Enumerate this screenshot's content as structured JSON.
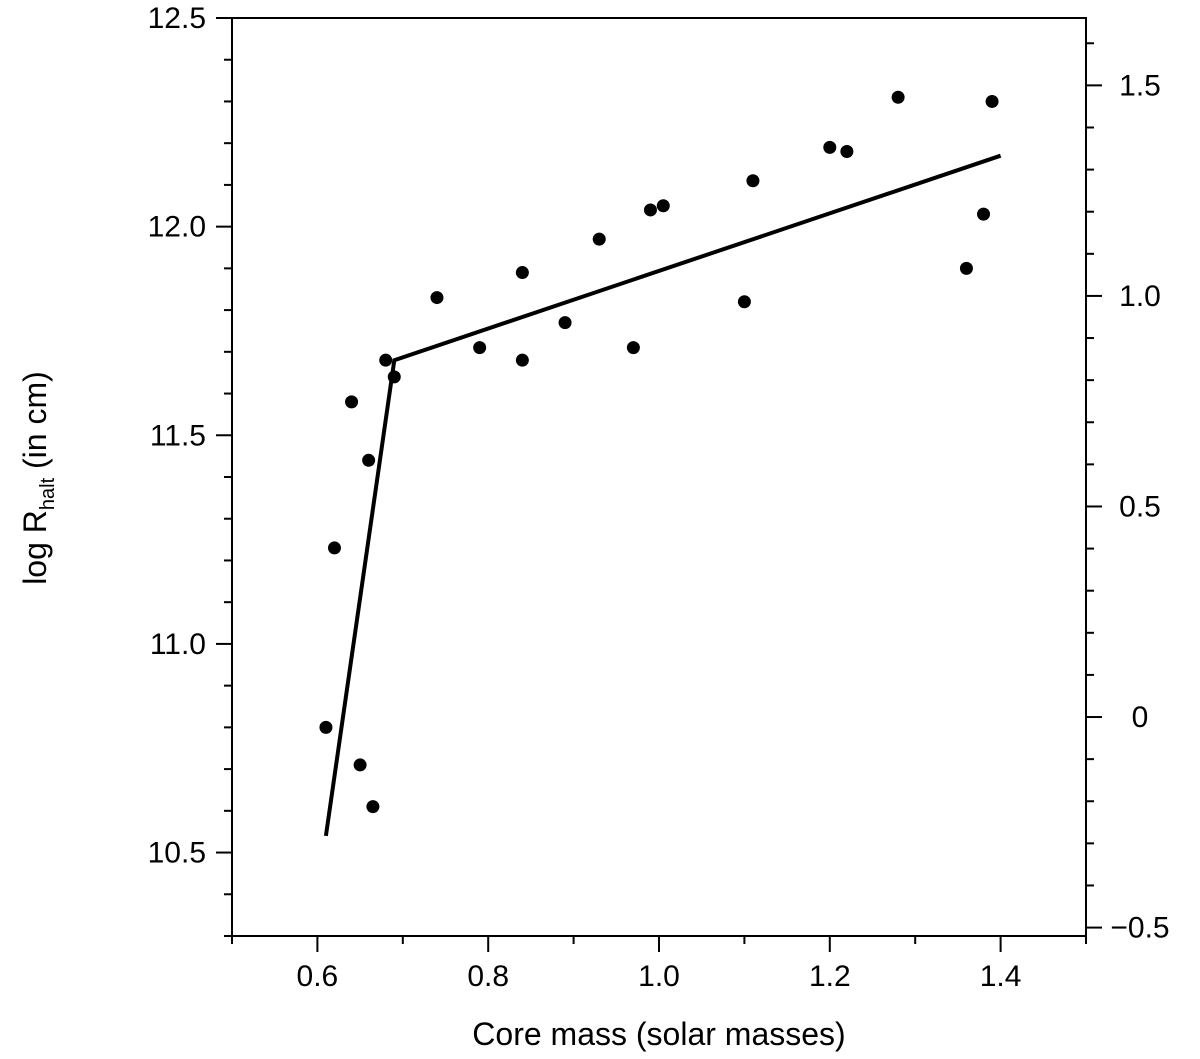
{
  "chart_data": {
    "type": "scatter",
    "xlabel": "Core mass (solar masses)",
    "ylabel": {
      "prefix": "log R",
      "subscript": "halt",
      "suffix": " (in cm)"
    },
    "xlim": [
      0.5,
      1.5
    ],
    "ylim": [
      10.3,
      12.5
    ],
    "y2lim": [
      -0.52,
      1.66
    ],
    "x_ticks": [
      {
        "value": 0.6,
        "label": "0.6"
      },
      {
        "value": 0.8,
        "label": "0.8"
      },
      {
        "value": 1.0,
        "label": "1.0"
      },
      {
        "value": 1.2,
        "label": "1.2"
      },
      {
        "value": 1.4,
        "label": "1.4"
      }
    ],
    "y_ticks": [
      {
        "value": 10.5,
        "label": "10.5"
      },
      {
        "value": 11.0,
        "label": "11.0"
      },
      {
        "value": 11.5,
        "label": "11.5"
      },
      {
        "value": 12.0,
        "label": "12.0"
      },
      {
        "value": 12.5,
        "label": "12.5"
      }
    ],
    "y2_ticks": [
      {
        "value": -0.5,
        "label": "−0.5"
      },
      {
        "value": 0.0,
        "label": "0"
      },
      {
        "value": 0.5,
        "label": "0.5"
      },
      {
        "value": 1.0,
        "label": "1.0"
      },
      {
        "value": 1.5,
        "label": "1.5"
      }
    ],
    "x_minor_step": 0.1,
    "y_minor_step": 0.1,
    "y2_minor_step": 0.1,
    "points": [
      {
        "x": 0.61,
        "y": 10.8
      },
      {
        "x": 0.62,
        "y": 11.23
      },
      {
        "x": 0.64,
        "y": 11.58
      },
      {
        "x": 0.65,
        "y": 10.71
      },
      {
        "x": 0.66,
        "y": 11.44
      },
      {
        "x": 0.665,
        "y": 10.61
      },
      {
        "x": 0.68,
        "y": 11.68
      },
      {
        "x": 0.69,
        "y": 11.64
      },
      {
        "x": 0.74,
        "y": 11.83
      },
      {
        "x": 0.79,
        "y": 11.71
      },
      {
        "x": 0.84,
        "y": 11.89
      },
      {
        "x": 0.84,
        "y": 11.68
      },
      {
        "x": 0.89,
        "y": 11.77
      },
      {
        "x": 0.93,
        "y": 11.97
      },
      {
        "x": 0.97,
        "y": 11.71
      },
      {
        "x": 0.99,
        "y": 12.04
      },
      {
        "x": 1.005,
        "y": 12.05
      },
      {
        "x": 1.1,
        "y": 11.82
      },
      {
        "x": 1.11,
        "y": 12.11
      },
      {
        "x": 1.2,
        "y": 12.19
      },
      {
        "x": 1.22,
        "y": 12.18
      },
      {
        "x": 1.28,
        "y": 12.31
      },
      {
        "x": 1.36,
        "y": 11.9
      },
      {
        "x": 1.38,
        "y": 12.03
      },
      {
        "x": 1.39,
        "y": 12.3
      }
    ],
    "fit_line": [
      {
        "x": 0.61,
        "y": 10.54
      },
      {
        "x": 0.69,
        "y": 11.68
      },
      {
        "x": 1.4,
        "y": 12.17
      }
    ]
  }
}
